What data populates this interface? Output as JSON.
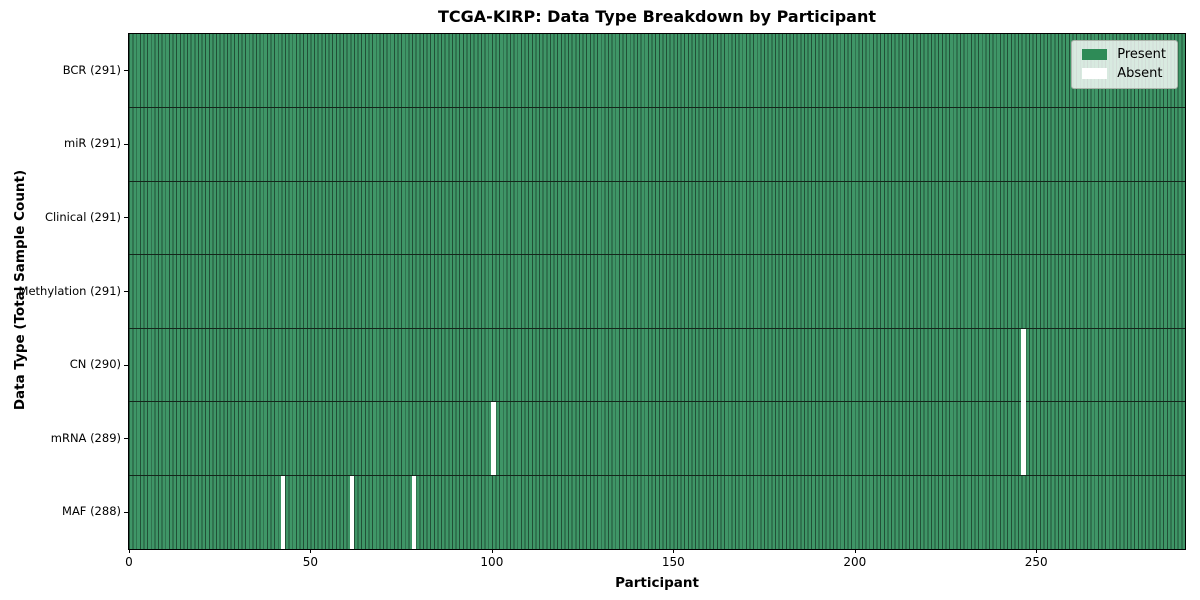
{
  "title": "TCGA-KIRP: Data Type Breakdown by Participant",
  "xlabel": "Participant",
  "ylabel": "Data Type (Total Sample Count)",
  "legend": {
    "present_label": "Present",
    "absent_label": "Absent"
  },
  "colors": {
    "present": "#2e8b57",
    "bar_fill": "#3f9667",
    "bar_edge": "#215037",
    "absent": "#ffffff",
    "boundary_line": "#14261b",
    "background": "#ffffff"
  },
  "n_participants": 291,
  "x_ticks": [
    0,
    50,
    100,
    150,
    200,
    250
  ],
  "rows": [
    {
      "key": "bcr",
      "name": "BCR",
      "label": "BCR (291)",
      "count": 291,
      "absent": []
    },
    {
      "key": "mir",
      "name": "miR",
      "label": "miR (291)",
      "count": 291,
      "absent": []
    },
    {
      "key": "clinical",
      "name": "Clinical",
      "label": "Clinical (291)",
      "count": 291,
      "absent": []
    },
    {
      "key": "methylation",
      "name": "Methylation",
      "label": "Methylation (291)",
      "count": 291,
      "absent": []
    },
    {
      "key": "cn",
      "name": "CN",
      "label": "CN (290)",
      "count": 290,
      "absent": [
        246
      ]
    },
    {
      "key": "mrna",
      "name": "mRNA",
      "label": "mRNA (289)",
      "count": 289,
      "absent": [
        100,
        246
      ]
    },
    {
      "key": "maf",
      "name": "MAF",
      "label": "MAF (288)",
      "count": 288,
      "absent": [
        42,
        61,
        78
      ]
    }
  ],
  "chart_data": {
    "type": "heatmap",
    "title": "TCGA-KIRP: Data Type Breakdown by Participant",
    "xlabel": "Participant",
    "ylabel": "Data Type (Total Sample Count)",
    "x_range": [
      0,
      291
    ],
    "x_ticks": [
      0,
      50,
      100,
      150,
      200,
      250
    ],
    "n_participants": 291,
    "categories": [
      "BCR (291)",
      "miR (291)",
      "Clinical (291)",
      "Methylation (291)",
      "CN (290)",
      "mRNA (289)",
      "MAF (288)"
    ],
    "legend": [
      "Present",
      "Absent"
    ],
    "legend_position": "upper right",
    "grid": false,
    "cell_encoding": "1 = Present (green), 0 = Absent (white); every participant 0-290 is present for each data type except the listed absent participant indices",
    "series": [
      {
        "name": "BCR",
        "total_samples": 291,
        "absent_participants": []
      },
      {
        "name": "miR",
        "total_samples": 291,
        "absent_participants": []
      },
      {
        "name": "Clinical",
        "total_samples": 291,
        "absent_participants": []
      },
      {
        "name": "Methylation",
        "total_samples": 291,
        "absent_participants": []
      },
      {
        "name": "CN",
        "total_samples": 290,
        "absent_participants": [
          246
        ]
      },
      {
        "name": "mRNA",
        "total_samples": 289,
        "absent_participants": [
          100,
          246
        ]
      },
      {
        "name": "MAF",
        "total_samples": 288,
        "absent_participants": [
          42,
          61,
          78
        ]
      }
    ]
  }
}
